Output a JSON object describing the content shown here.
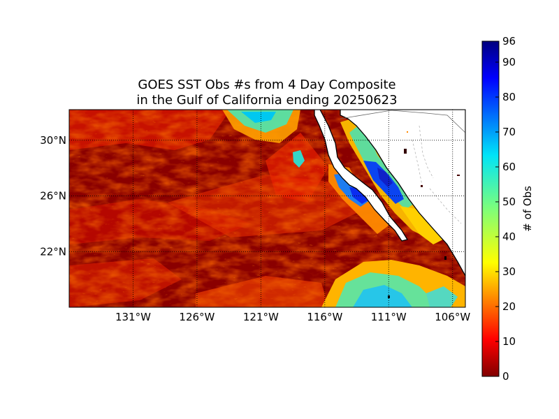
{
  "figure": {
    "title_line1": "GOES SST Obs #s from 4 Day Composite",
    "title_line2": "in the Gulf of California ending 20250623"
  },
  "map": {
    "lon_range": [
      -136.0,
      -105.0
    ],
    "lat_range": [
      18.0,
      32.2
    ],
    "lon_ticks": [
      {
        "value": -131,
        "label": "131°W"
      },
      {
        "value": -126,
        "label": "126°W"
      },
      {
        "value": -121,
        "label": "121°W"
      },
      {
        "value": -116,
        "label": "116°W"
      },
      {
        "value": -111,
        "label": "111°W"
      },
      {
        "value": -106,
        "label": "106°W"
      }
    ],
    "lat_ticks": [
      {
        "value": 30,
        "label": "30°N"
      },
      {
        "value": 26,
        "label": "26°N"
      },
      {
        "value": 22,
        "label": "22°N"
      }
    ],
    "grid": true,
    "colormap": "jet",
    "land_color": "#ffffff",
    "coastline_color": "#000000"
  },
  "colorbar": {
    "label": "# of Obs",
    "range": [
      0,
      96
    ],
    "ticks": [
      {
        "value": 0,
        "label": "0"
      },
      {
        "value": 10,
        "label": "10"
      },
      {
        "value": 20,
        "label": "20"
      },
      {
        "value": 30,
        "label": "30"
      },
      {
        "value": 40,
        "label": "40"
      },
      {
        "value": 50,
        "label": "50"
      },
      {
        "value": 60,
        "label": "60"
      },
      {
        "value": 70,
        "label": "70"
      },
      {
        "value": 80,
        "label": "80"
      },
      {
        "value": 90,
        "label": "90"
      },
      {
        "value": 96,
        "label": "96"
      }
    ]
  }
}
